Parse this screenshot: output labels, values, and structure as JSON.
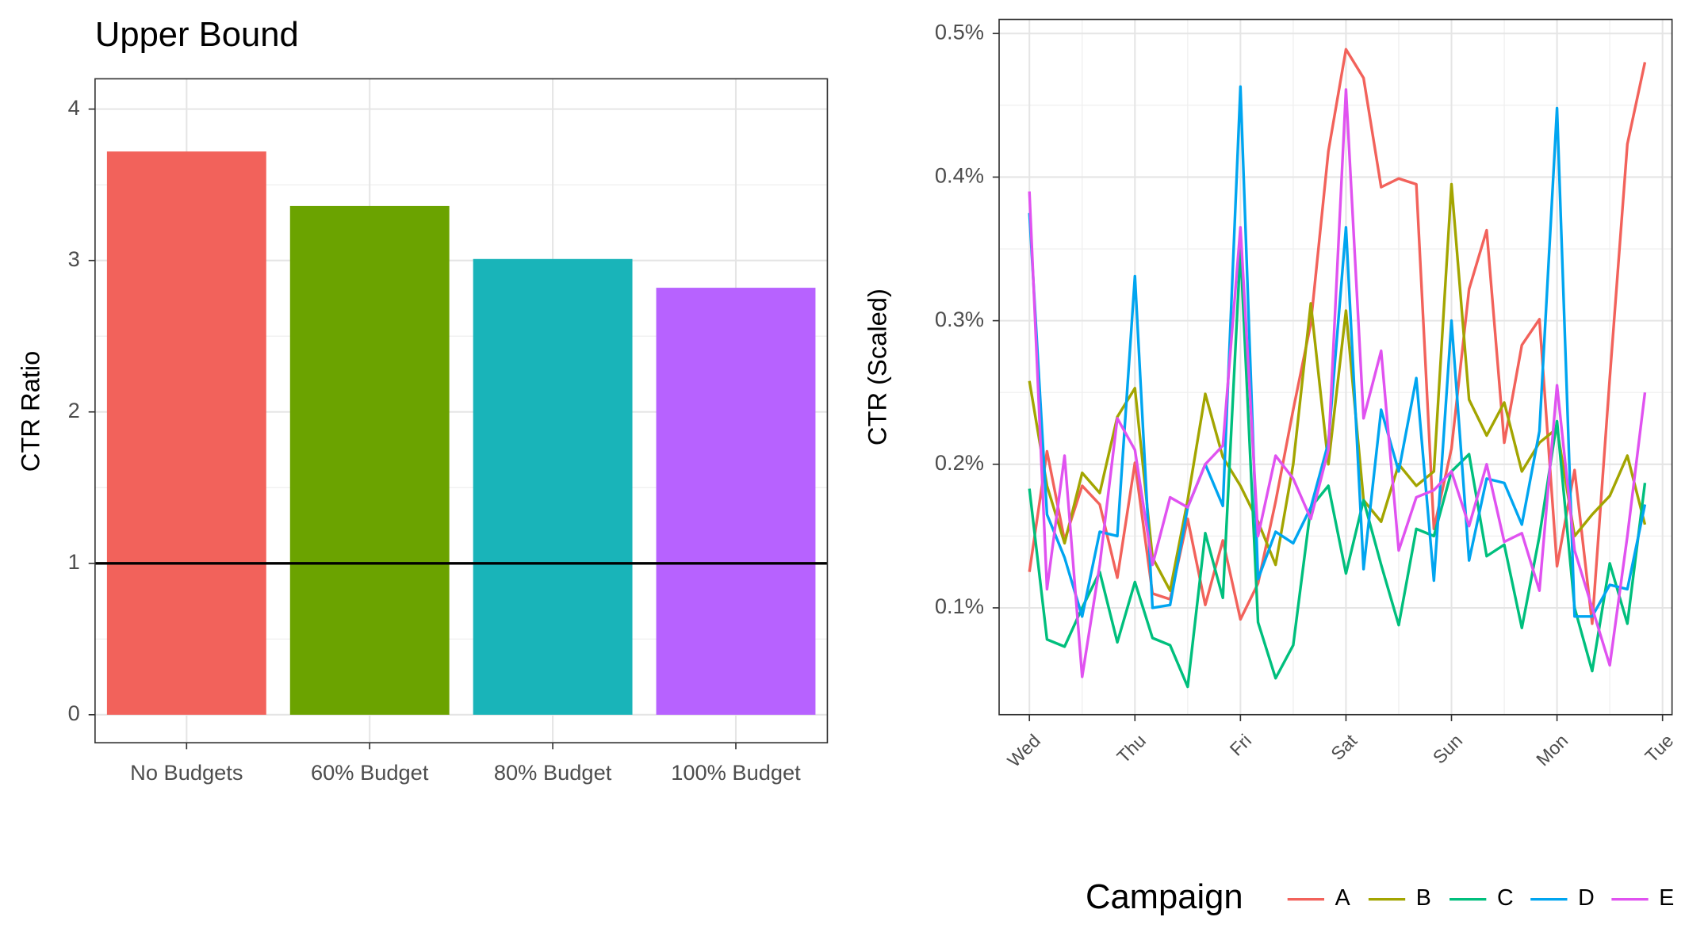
{
  "chart_data": [
    {
      "type": "bar",
      "title": "Upper Bound",
      "y_label": "CTR Ratio",
      "categories": [
        "No Budgets",
        "60% Budget",
        "80% Budget",
        "100% Budget"
      ],
      "values": [
        3.72,
        3.36,
        3.01,
        2.82
      ],
      "colors": [
        "#F2625B",
        "#6BA300",
        "#19B4B9",
        "#B762FF"
      ],
      "hline": 1,
      "ylim": [
        -0.185,
        4.2
      ],
      "yticks": [
        0,
        1,
        2,
        3,
        4
      ],
      "grid": true
    },
    {
      "type": "line",
      "y_label": "CTR (Scaled)",
      "legend_title": "Campaign",
      "legend": "bottom",
      "x": [
        0,
        0.1667,
        0.3333,
        0.5,
        0.6667,
        0.8333,
        1,
        1.1667,
        1.3333,
        1.5,
        1.6667,
        1.8333,
        2,
        2.1667,
        2.3333,
        2.5,
        2.6667,
        2.8333,
        3,
        3.1667,
        3.3333,
        3.5,
        3.6667,
        3.8333,
        4,
        4.1667,
        4.3333,
        4.5,
        4.6667,
        4.8333,
        5,
        5.1667,
        5.3333,
        5.5,
        5.6667,
        5.8333
      ],
      "xlim": [
        -0.287,
        6.09
      ],
      "xticks": [
        {
          "value": 0,
          "label": "Wed"
        },
        {
          "value": 1,
          "label": "Thu"
        },
        {
          "value": 2,
          "label": "Fri"
        },
        {
          "value": 3,
          "label": "Sat"
        },
        {
          "value": 4,
          "label": "Sun"
        },
        {
          "value": 5,
          "label": "Mon"
        },
        {
          "value": 6,
          "label": "Tue"
        }
      ],
      "ylim": [
        0.0256,
        0.5098
      ],
      "yticks": [
        {
          "value": 0.1,
          "label": "0.1%"
        },
        {
          "value": 0.2,
          "label": "0.2%"
        },
        {
          "value": 0.3,
          "label": "0.3%"
        },
        {
          "value": 0.4,
          "label": "0.4%"
        },
        {
          "value": 0.5,
          "label": "0.5%"
        }
      ],
      "grid": true,
      "series": [
        {
          "name": "A",
          "color": "#F2625B",
          "values": [
            0.125,
            0.209,
            0.147,
            0.185,
            0.172,
            0.121,
            0.201,
            0.11,
            0.106,
            0.162,
            0.102,
            0.147,
            0.092,
            0.117,
            0.174,
            0.238,
            0.298,
            0.418,
            0.489,
            0.469,
            0.393,
            0.399,
            0.395,
            0.155,
            0.211,
            0.322,
            0.363,
            0.215,
            0.283,
            0.301,
            0.129,
            0.196,
            0.089,
            0.26,
            0.423,
            0.48
          ]
        },
        {
          "name": "B",
          "color": "#A3A500",
          "values": [
            0.258,
            0.185,
            0.145,
            0.194,
            0.18,
            0.233,
            0.253,
            0.135,
            0.112,
            0.175,
            0.249,
            0.205,
            0.185,
            0.16,
            0.13,
            0.2,
            0.312,
            0.2,
            0.307,
            0.175,
            0.16,
            0.2,
            0.185,
            0.195,
            0.395,
            0.245,
            0.22,
            0.243,
            0.195,
            0.215,
            0.225,
            0.15,
            0.165,
            0.178,
            0.206,
            0.158
          ]
        },
        {
          "name": "C",
          "color": "#00BF7D",
          "values": [
            0.183,
            0.078,
            0.073,
            0.1,
            0.125,
            0.076,
            0.118,
            0.079,
            0.074,
            0.045,
            0.152,
            0.107,
            0.35,
            0.09,
            0.051,
            0.074,
            0.17,
            0.185,
            0.124,
            0.175,
            0.13,
            0.088,
            0.155,
            0.15,
            0.195,
            0.207,
            0.136,
            0.144,
            0.086,
            0.15,
            0.23,
            0.1,
            0.056,
            0.131,
            0.089,
            0.187
          ]
        },
        {
          "name": "D",
          "color": "#00A5F0",
          "values": [
            0.375,
            0.165,
            0.135,
            0.094,
            0.153,
            0.15,
            0.331,
            0.1,
            0.102,
            0.17,
            0.2,
            0.171,
            0.463,
            0.12,
            0.153,
            0.145,
            0.17,
            0.215,
            0.365,
            0.127,
            0.238,
            0.195,
            0.26,
            0.119,
            0.3,
            0.133,
            0.19,
            0.187,
            0.158,
            0.223,
            0.448,
            0.094,
            0.094,
            0.116,
            0.113,
            0.172
          ]
        },
        {
          "name": "E",
          "color": "#E052F0",
          "values": [
            0.39,
            0.113,
            0.206,
            0.052,
            0.13,
            0.232,
            0.21,
            0.13,
            0.177,
            0.17,
            0.2,
            0.213,
            0.365,
            0.15,
            0.206,
            0.19,
            0.162,
            0.21,
            0.461,
            0.232,
            0.279,
            0.14,
            0.177,
            0.182,
            0.195,
            0.157,
            0.2,
            0.146,
            0.152,
            0.112,
            0.255,
            0.14,
            0.1,
            0.06,
            0.15,
            0.25
          ]
        }
      ]
    }
  ]
}
